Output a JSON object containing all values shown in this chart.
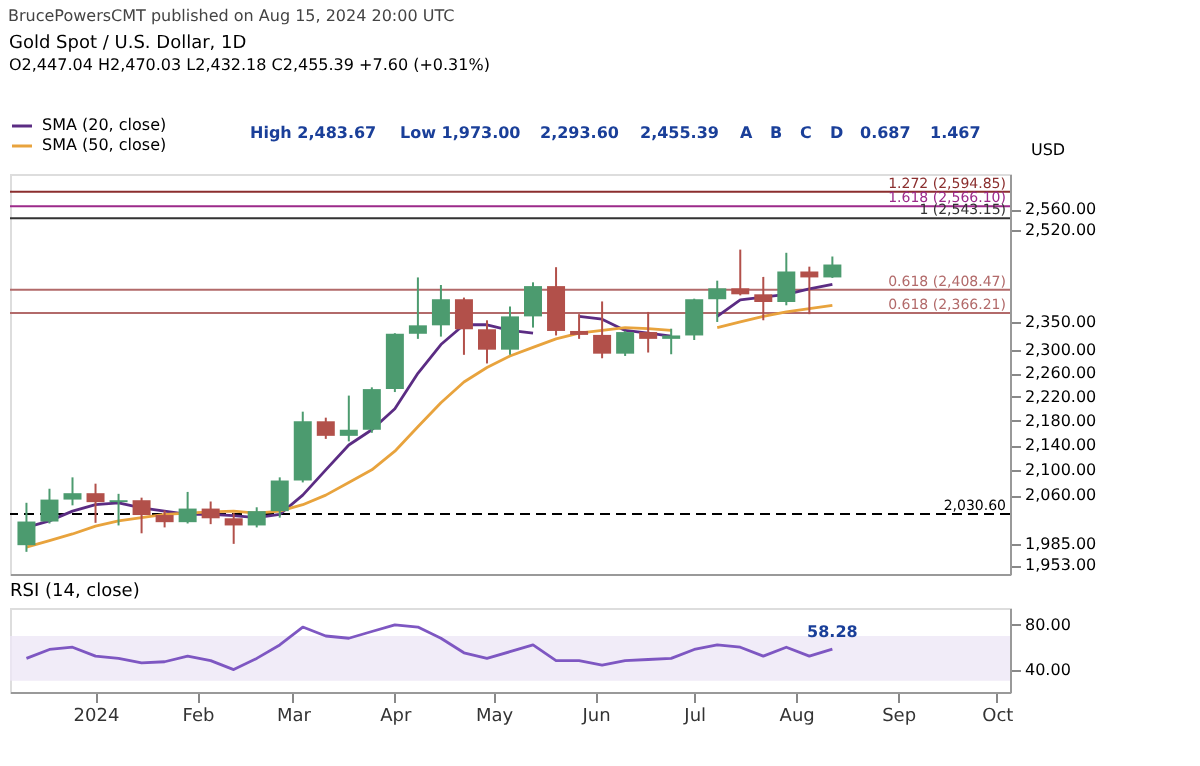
{
  "chart_data": [
    {
      "type": "candlestick",
      "title": "Gold Spot / U.S. Dollar, 1D",
      "subtitle": "O2,447.04 H2,470.03 L2,432.18 C2,455.39 +7.60 (+0.31%)",
      "x": [
        "2023-12-11",
        "2023-12-18",
        "2023-12-25",
        "2024-01-01",
        "2024-01-08",
        "2024-01-15",
        "2024-01-22",
        "2024-01-29",
        "2024-02-05",
        "2024-02-12",
        "2024-02-19",
        "2024-02-26",
        "2024-03-04",
        "2024-03-11",
        "2024-03-18",
        "2024-03-25",
        "2024-04-01",
        "2024-04-08",
        "2024-04-15",
        "2024-04-22",
        "2024-04-29",
        "2024-05-06",
        "2024-05-13",
        "2024-05-20",
        "2024-05-27",
        "2024-06-03",
        "2024-06-10",
        "2024-06-17",
        "2024-06-24",
        "2024-07-01",
        "2024-07-08",
        "2024-07-15",
        "2024-07-22",
        "2024-07-29",
        "2024-08-05",
        "2024-08-12"
      ],
      "ohlc": [
        [
          1983,
          2048,
          1973,
          2019
        ],
        [
          2019,
          2070,
          2016,
          2053
        ],
        [
          2053,
          2088,
          2044,
          2063
        ],
        [
          2063,
          2078,
          2017,
          2049
        ],
        [
          2049,
          2062,
          2013,
          2052
        ],
        [
          2052,
          2056,
          2001,
          2029
        ],
        [
          2029,
          2036,
          2010,
          2018
        ],
        [
          2018,
          2065,
          2016,
          2039
        ],
        [
          2039,
          2050,
          2015,
          2024
        ],
        [
          2024,
          2032,
          1985,
          2013
        ],
        [
          2013,
          2041,
          2010,
          2035
        ],
        [
          2035,
          2088,
          2025,
          2083
        ],
        [
          2083,
          2195,
          2080,
          2179
        ],
        [
          2179,
          2185,
          2150,
          2155
        ],
        [
          2155,
          2222,
          2146,
          2165
        ],
        [
          2165,
          2236,
          2160,
          2233
        ],
        [
          2233,
          2330,
          2228,
          2329
        ],
        [
          2329,
          2431,
          2320,
          2344
        ],
        [
          2344,
          2417,
          2324,
          2391
        ],
        [
          2391,
          2394,
          2292,
          2337
        ],
        [
          2337,
          2353,
          2277,
          2301
        ],
        [
          2301,
          2378,
          2292,
          2360
        ],
        [
          2360,
          2422,
          2340,
          2415
        ],
        [
          2415,
          2450,
          2326,
          2334
        ],
        [
          2334,
          2364,
          2320,
          2327
        ],
        [
          2327,
          2387,
          2286,
          2294
        ],
        [
          2294,
          2334,
          2290,
          2332
        ],
        [
          2332,
          2368,
          2296,
          2320
        ],
        [
          2320,
          2338,
          2293,
          2326
        ],
        [
          2326,
          2392,
          2318,
          2391
        ],
        [
          2391,
          2425,
          2350,
          2411
        ],
        [
          2411,
          2483,
          2398,
          2400
        ],
        [
          2400,
          2432,
          2353,
          2386
        ],
        [
          2386,
          2477,
          2380,
          2442
        ],
        [
          2442,
          2451,
          2364,
          2431
        ],
        [
          2431,
          2470,
          2430,
          2455
        ]
      ],
      "colors": [
        "#4c9b6f",
        "#4c9b6f",
        "#4c9b6f",
        "#b2504a",
        "#4c9b6f",
        "#b2504a",
        "#b2504a",
        "#4c9b6f",
        "#b2504a",
        "#b2504a",
        "#4c9b6f",
        "#4c9b6f",
        "#4c9b6f",
        "#b2504a",
        "#4c9b6f",
        "#4c9b6f",
        "#4c9b6f",
        "#4c9b6f",
        "#4c9b6f",
        "#b2504a",
        "#b2504a",
        "#4c9b6f",
        "#4c9b6f",
        "#b2504a",
        "#b2504a",
        "#b2504a",
        "#4c9b6f",
        "#b2504a",
        "#4c9b6f",
        "#4c9b6f",
        "#4c9b6f",
        "#b2504a",
        "#b2504a",
        "#4c9b6f",
        "#b2504a",
        "#4c9b6f"
      ],
      "series": [
        {
          "name": "SMA (20, close)",
          "type": "line",
          "color": "#5b2c83",
          "values": [
            2010,
            2020,
            2035,
            2045,
            2048,
            2040,
            2035,
            2030,
            2030,
            2028,
            2025,
            2030,
            2060,
            2100,
            2140,
            2165,
            2200,
            2260,
            2310,
            2345,
            2345,
            2335,
            2330,
            null,
            2360,
            2355,
            2335,
            2330,
            2325,
            null,
            2360,
            2390,
            2395,
            2400,
            2410,
            2418.21
          ]
        },
        {
          "name": "SMA (50, close)",
          "type": "line",
          "color": "#e8a33d",
          "values": [
            1980,
            1990,
            2000,
            2012,
            2020,
            2025,
            2030,
            2032,
            2034,
            2035,
            2032,
            2035,
            2045,
            2060,
            2080,
            2100,
            2130,
            2170,
            2210,
            2245,
            2270,
            2290,
            2305,
            2320,
            2330,
            2335,
            2340,
            2338,
            2335,
            null,
            2340,
            2350,
            2360,
            2368,
            2374,
            2379.77
          ]
        }
      ],
      "log": true,
      "ylim": [
        1940,
        2630
      ],
      "yticks": [
        {
          "value": 1953,
          "label": "1,953.00"
        },
        {
          "value": 1985,
          "label": "1,985.00"
        },
        {
          "value": 2060,
          "label": "2,060.00"
        },
        {
          "value": 2100,
          "label": "2,100.00"
        },
        {
          "value": 2140,
          "label": "2,140.00"
        },
        {
          "value": 2180,
          "label": "2,180.00"
        },
        {
          "value": 2220,
          "label": "2,220.00"
        },
        {
          "value": 2260,
          "label": "2,260.00"
        },
        {
          "value": 2300,
          "label": "2,300.00"
        },
        {
          "value": 2350,
          "label": "2,350.00"
        },
        {
          "value": 2520,
          "label": "2,520.00"
        },
        {
          "value": 2560,
          "label": "2,560.00"
        }
      ],
      "xlim": [
        "2023-12-06",
        "2024-10-05"
      ],
      "ylabel": "USD",
      "tick_labels": "y",
      "legend": "top left",
      "ref_lines": [
        {
          "axis": "y",
          "value": 2030.6,
          "label": "2,030.60",
          "color": "#000000",
          "line_style": "dashed"
        },
        {
          "axis": "y",
          "value": 2594.85,
          "label": "1.272 (2,594.85)",
          "color": "#8b2e2e"
        },
        {
          "axis": "y",
          "value": 2566.1,
          "label": "1.618 (2,566.10)",
          "color": "#9c2a8a"
        },
        {
          "axis": "y",
          "value": 2543.15,
          "label": "1 (2,543.15)",
          "color": "#333333"
        },
        {
          "axis": "y",
          "value": 2408.47,
          "label": "0.618 (2,408.47)",
          "color": "#b26a6a"
        },
        {
          "axis": "y",
          "value": 2366.21,
          "label": "0.618 (2,366.21)",
          "color": "#b26a6a"
        }
      ],
      "annotations": [
        "BrucePowersCMT published on Aug 15, 2024 20:00 UTC",
        "High 2,483.67",
        "Low 1,973.00",
        "2,293.60",
        "2,455.39",
        "A",
        "B",
        "C",
        "D",
        "0.687",
        "1.467"
      ]
    },
    {
      "type": "line",
      "title": "RSI (14, close)",
      "x": [
        "2023-12-11",
        "2023-12-18",
        "2023-12-25",
        "2024-01-01",
        "2024-01-08",
        "2024-01-15",
        "2024-01-22",
        "2024-01-29",
        "2024-02-05",
        "2024-02-12",
        "2024-02-19",
        "2024-02-26",
        "2024-03-04",
        "2024-03-11",
        "2024-03-18",
        "2024-03-25",
        "2024-04-01",
        "2024-04-08",
        "2024-04-15",
        "2024-04-22",
        "2024-04-29",
        "2024-05-06",
        "2024-05-13",
        "2024-05-20",
        "2024-05-27",
        "2024-06-03",
        "2024-06-10",
        "2024-06-17",
        "2024-06-24",
        "2024-07-01",
        "2024-07-08",
        "2024-07-15",
        "2024-07-22",
        "2024-07-29",
        "2024-08-05",
        "2024-08-12"
      ],
      "series": [
        {
          "color": "#7e57c2",
          "values": [
            50,
            58,
            60,
            52,
            50,
            46,
            47,
            52,
            48,
            40,
            50,
            62,
            78,
            70,
            68,
            74,
            80,
            78,
            68,
            55,
            50,
            56,
            62,
            48,
            48,
            44,
            48,
            49,
            50,
            58,
            62,
            60,
            52,
            60,
            52,
            58.28
          ]
        }
      ],
      "xlim": [
        "2023-12-06",
        "2024-10-05"
      ],
      "xticks": [
        {
          "value": "2024-01-01",
          "label": "2024"
        },
        {
          "value": "2024-02-01",
          "label": "Feb"
        },
        {
          "value": "2024-03-01",
          "label": "Mar"
        },
        {
          "value": "2024-04-01",
          "label": "Apr"
        },
        {
          "value": "2024-05-01",
          "label": "May"
        },
        {
          "value": "2024-06-01",
          "label": "Jun"
        },
        {
          "value": "2024-07-01",
          "label": "Jul"
        },
        {
          "value": "2024-08-01",
          "label": "Aug"
        },
        {
          "value": "2024-09-01",
          "label": "Sep"
        },
        {
          "value": "2024-10-01",
          "label": "Oct"
        }
      ],
      "ylim": [
        20,
        95
      ],
      "yticks": [
        {
          "value": 40,
          "label": "40.00"
        },
        {
          "value": 80,
          "label": "80.00"
        }
      ],
      "bands": [
        {
          "axis": "y",
          "from": 30,
          "to": 70,
          "color": "#ede7f6"
        }
      ],
      "annotations": [
        {
          "text": "58.28",
          "x": "2024-08-12",
          "y": 58.28
        }
      ]
    }
  ]
}
